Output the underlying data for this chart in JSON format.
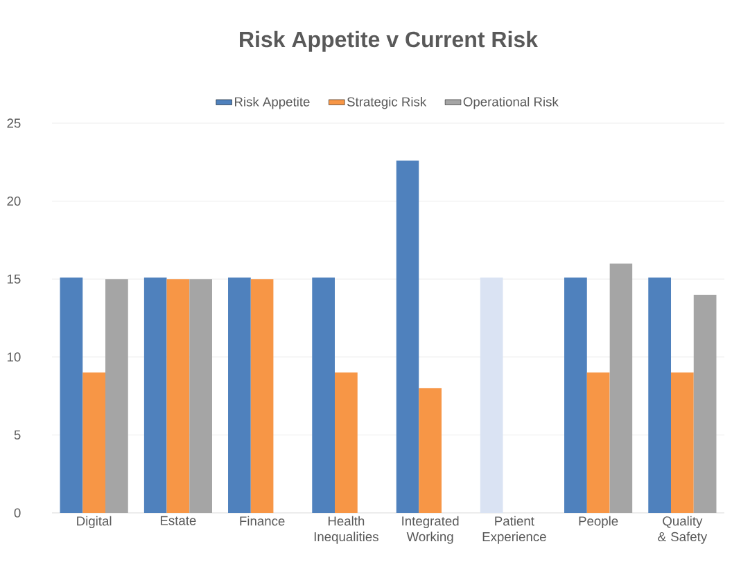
{
  "chart_data": {
    "type": "bar",
    "title": "Risk Appetite v Current Risk",
    "categories": [
      "Digital",
      "Estate",
      "Finance",
      "Health Inequalities",
      "Integrated Working",
      "Patient Experience",
      "People",
      "Quality & Safety"
    ],
    "series": [
      {
        "name": "Risk Appetite",
        "color": "#4f81bd",
        "colors": [
          "#4f81bd",
          "#4f81bd",
          "#4f81bd",
          "#4f81bd",
          "#4f81bd",
          "#dae3f3",
          "#4f81bd",
          "#4f81bd"
        ],
        "values": [
          15.1,
          15.1,
          15.1,
          15.1,
          22.6,
          15.1,
          15.1,
          15.1
        ]
      },
      {
        "name": "Strategic Risk",
        "color": "#f79646",
        "values": [
          9,
          15,
          15,
          9,
          8,
          null,
          9,
          9
        ]
      },
      {
        "name": "Operational Risk",
        "color": "#a5a5a5",
        "values": [
          15,
          15,
          null,
          null,
          null,
          null,
          16,
          14
        ]
      }
    ],
    "ylim": [
      0,
      25
    ],
    "yticks": [
      0,
      5,
      10,
      15,
      20,
      25
    ],
    "grid": "y",
    "legend": "top"
  }
}
